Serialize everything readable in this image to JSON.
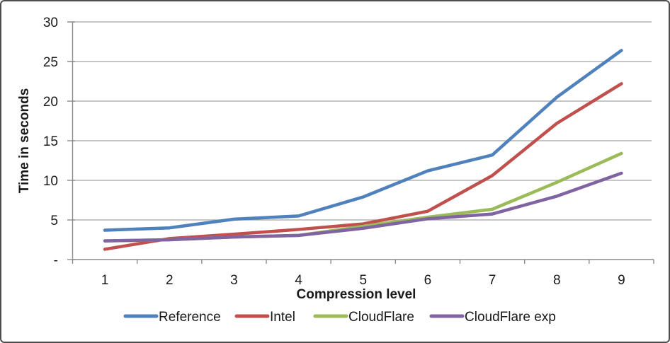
{
  "chart_data": {
    "type": "line",
    "title": "",
    "xlabel": "Compression level",
    "ylabel": "Time in seconds",
    "x": [
      1,
      2,
      3,
      4,
      5,
      6,
      7,
      8,
      9
    ],
    "xtick_labels": [
      "1",
      "2",
      "3",
      "4",
      "5",
      "6",
      "7",
      "8",
      "9"
    ],
    "ylim": [
      0,
      30
    ],
    "ytick_step": 5,
    "ytick_labels": [
      "-",
      "5",
      "10",
      "15",
      "20",
      "25",
      "30"
    ],
    "grid": "horizontal-only",
    "legend_position": "bottom",
    "series": [
      {
        "name": "Reference",
        "color": "#4F81BD",
        "values": [
          3.7,
          4.0,
          5.1,
          5.5,
          7.9,
          11.2,
          13.2,
          20.5,
          26.4
        ]
      },
      {
        "name": "Intel",
        "color": "#C0504D",
        "values": [
          1.3,
          2.65,
          3.2,
          3.8,
          4.5,
          6.1,
          10.6,
          17.2,
          22.2
        ]
      },
      {
        "name": "CloudFlare",
        "color": "#9BBB59",
        "values": [
          2.35,
          2.5,
          2.85,
          3.05,
          4.2,
          5.35,
          6.35,
          9.75,
          13.4
        ]
      },
      {
        "name": "CloudFlare exp",
        "color": "#8064A2",
        "values": [
          2.35,
          2.5,
          2.85,
          3.05,
          3.95,
          5.15,
          5.75,
          8.0,
          10.9
        ]
      }
    ]
  },
  "style": {
    "gridline_color": "#a3a3a3",
    "axis_color": "#8c8c8c",
    "text_color": "#1a1a1a",
    "border_color": "#4d4d4d",
    "background": "#ffffff"
  }
}
